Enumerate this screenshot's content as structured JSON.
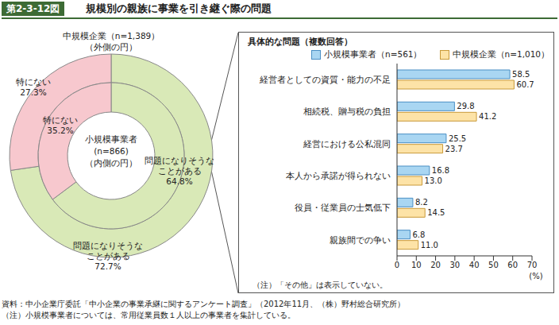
{
  "figure_number": "第2-3-12図",
  "title": "規模別の親族に事業を引き継ぐ際の問題",
  "footnotes": [
    "資料：中小企業庁委託「中小企業の事業承継に関するアンケート調査」（2012年11月、（株）野村総合研究所）",
    "（注）小規模事業者については、常用従業員数１人以上の事業者を集計している。"
  ],
  "chart_data": [
    {
      "type": "pie",
      "categories": [
        "問題になりそうなことがある",
        "特にない"
      ],
      "colors": [
        "#d9e9b7",
        "#f7c8ce"
      ],
      "data_labels": true,
      "series": [
        {
          "name": "中規模企業（n=1,389）",
          "note": "（外側の円）",
          "values": [
            72.7,
            27.3
          ],
          "value_labels": [
            "72.7%",
            "27.3%"
          ]
        },
        {
          "name": "小規模事業者",
          "n_label": "(n=866)",
          "note": "（内側の円）",
          "values": [
            64.8,
            35.2
          ],
          "value_labels": [
            "64.8%",
            "35.2%"
          ]
        }
      ]
    },
    {
      "type": "bar",
      "orientation": "horizontal",
      "title": "具体的な問題（複数回答）",
      "categories": [
        "経営者としての資質・能力の不足",
        "相続税、贈与税の負担",
        "経営における公私混同",
        "本人から承諾が得られない",
        "役員・従業員の士気低下",
        "親族間での争い"
      ],
      "series": [
        {
          "name": "小規模事業者（n=561）",
          "color": "#a9d6f2",
          "values": [
            58.5,
            29.8,
            25.5,
            16.8,
            8.2,
            6.8
          ]
        },
        {
          "name": "中規模企業（n=1,010）",
          "color": "#fde3a7",
          "values": [
            60.7,
            41.2,
            23.7,
            13.0,
            14.5,
            11.0
          ],
          "value_labels": [
            "60.7",
            "41.2",
            "23.7",
            "13.0",
            "14.5",
            "11.0"
          ]
        }
      ],
      "xlim": [
        0,
        70
      ],
      "xticks": [
        0,
        10,
        20,
        30,
        40,
        50,
        60,
        70
      ],
      "xlabel": "(%)",
      "data_labels": true,
      "legend": "top",
      "grid": false,
      "note": "（注）「その他」は表示していない。"
    }
  ]
}
